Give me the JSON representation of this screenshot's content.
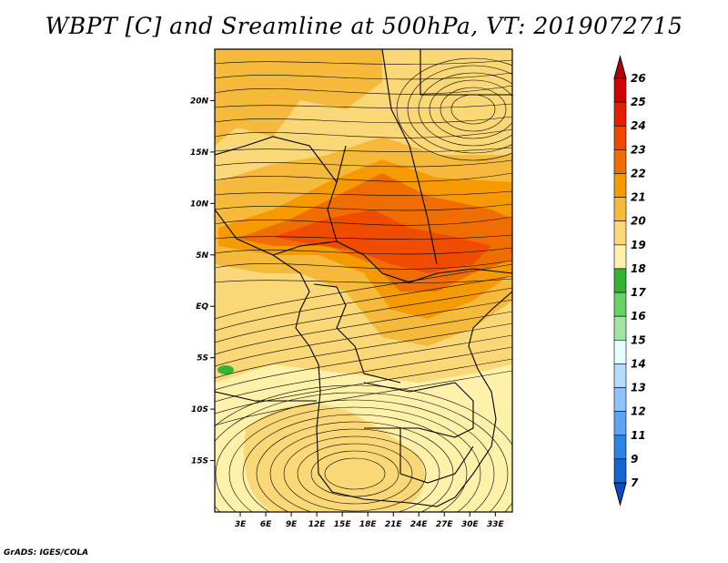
{
  "title": "WBPT [C] and Sreamline at 500hPa, VT: 2019072715",
  "credit": "GrADS: IGES/COLA",
  "lat_axis": {
    "labels": [
      "20N",
      "15N",
      "10N",
      "5N",
      "EQ",
      "5S",
      "10S",
      "15S"
    ],
    "values": [
      20,
      15,
      10,
      5,
      0,
      -5,
      -10,
      -15
    ],
    "range": [
      -20,
      25
    ]
  },
  "lon_axis": {
    "labels": [
      "3E",
      "6E",
      "9E",
      "12E",
      "15E",
      "18E",
      "21E",
      "24E",
      "27E",
      "30E",
      "33E"
    ],
    "values": [
      3,
      6,
      9,
      12,
      15,
      18,
      21,
      24,
      27,
      30,
      33
    ],
    "range": [
      0,
      35
    ]
  },
  "colorbar": {
    "labels": [
      "26",
      "25",
      "24",
      "23",
      "22",
      "21",
      "20",
      "19",
      "18",
      "17",
      "16",
      "15",
      "14",
      "13",
      "12",
      "11",
      "9",
      "7"
    ],
    "colors": [
      "#b40000",
      "#d20000",
      "#e61e00",
      "#f04600",
      "#f06e00",
      "#f59a00",
      "#f5b93c",
      "#fad878",
      "#fff0aa",
      "#32b432",
      "#64d264",
      "#a0e6a0",
      "#e6ffff",
      "#b4dcff",
      "#8cc3ff",
      "#5ca5f5",
      "#2c82e6",
      "#1464d2",
      "#0a4bc8"
    ]
  },
  "colors": {
    "land_boundary": "#000000",
    "streamline": "#000000"
  }
}
